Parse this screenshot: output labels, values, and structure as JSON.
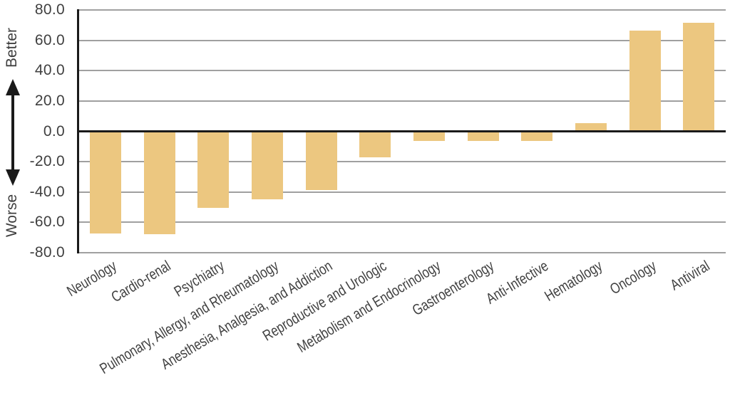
{
  "figure": {
    "better_label": "Better",
    "worse_label": "Worse"
  },
  "chart_data": {
    "type": "bar",
    "title": "",
    "xlabel": "",
    "ylabel": "Better / Worse",
    "categories": [
      "Neurology",
      "Cardio-renal",
      "Psychiatry",
      "Pulmonary, Allergy, and Rheumatology",
      "Anesthesia, Analgesia, and Addiction",
      "Reproductive and Urologic",
      "Metabolism and Endocrinology",
      "Gastroenterology",
      "Anti-Infective",
      "Hematology",
      "Oncology",
      "Antiviral"
    ],
    "values": [
      -67.5,
      -68,
      -50.5,
      -45,
      -38.5,
      -17,
      -6.5,
      -6.5,
      -6.5,
      5.5,
      66.5,
      71.5
    ],
    "ylim": [
      -80,
      80
    ],
    "ytick_step": 20,
    "ytick_labels": [
      "80.0",
      "60.0",
      "40.0",
      "20.0",
      "0.0",
      "-20.0",
      "-40.0",
      "-60.0",
      "-80.0"
    ],
    "grid": true,
    "legend_position": "none",
    "annotations": {
      "positive_direction": "Better",
      "negative_direction": "Worse"
    },
    "colors": {
      "bar": "#ECC780",
      "grid": "#A0A0A0",
      "zero_line": "#1A1A1A",
      "axis": "#1A1A1A",
      "text": "#3F3F3F"
    }
  }
}
